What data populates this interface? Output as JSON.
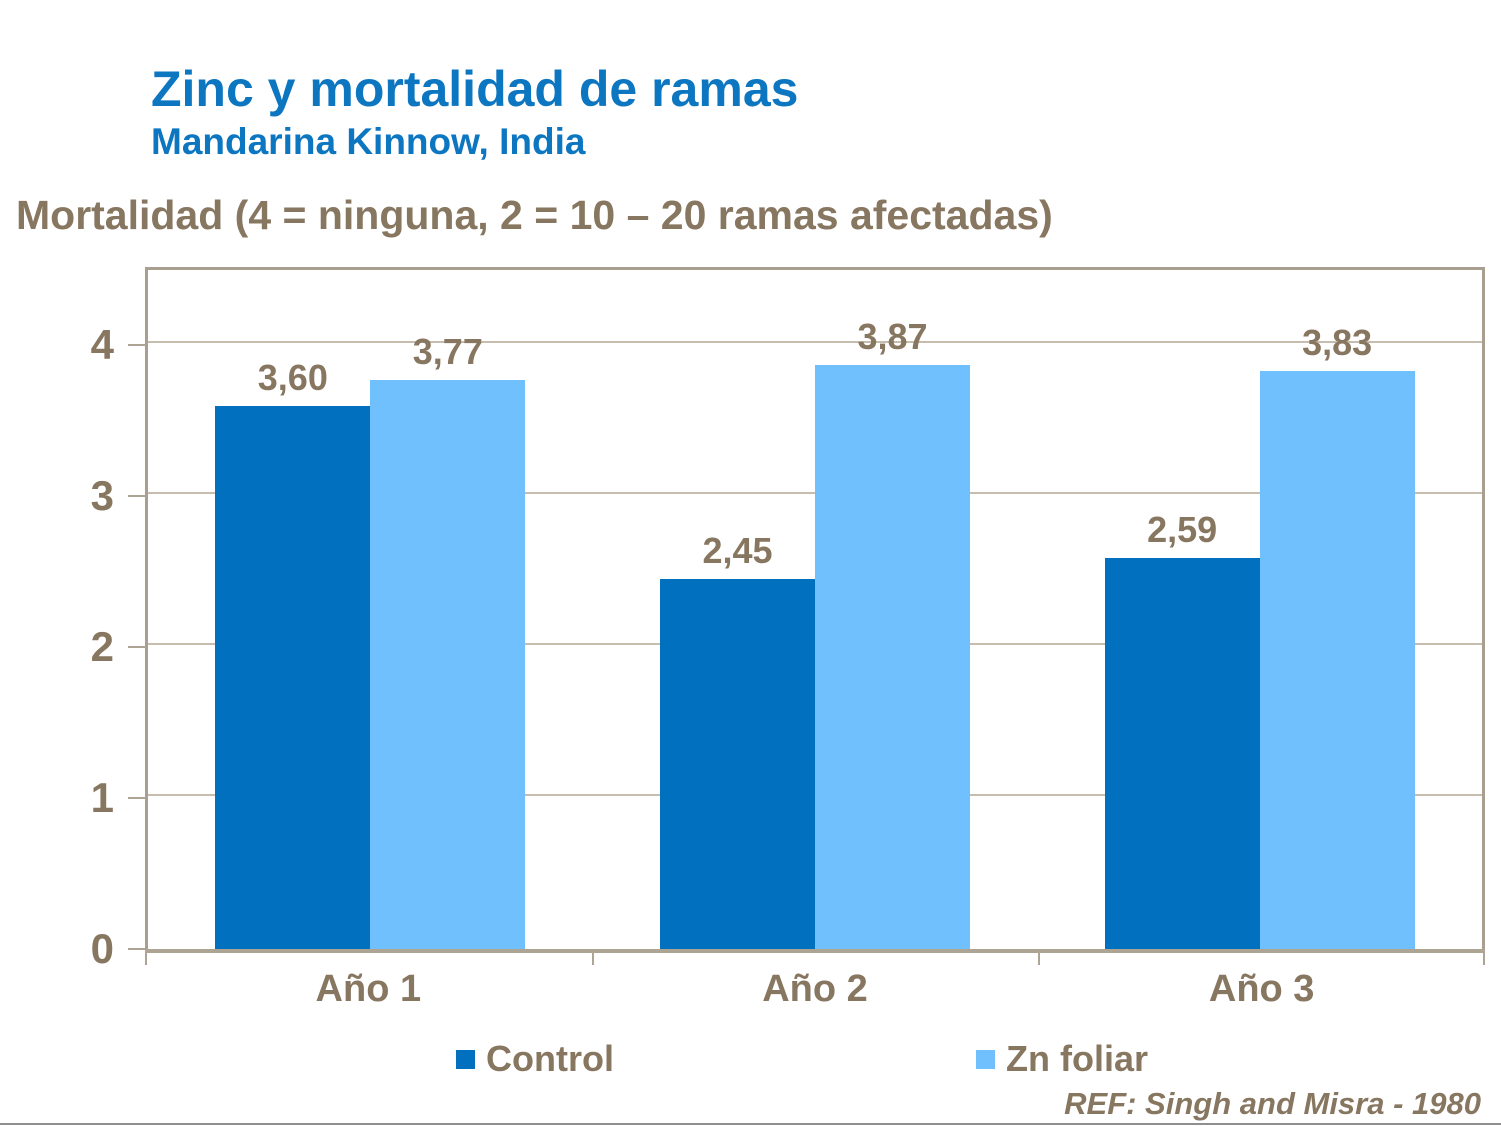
{
  "slide": {
    "title": "Zinc y mortalidad de ramas",
    "subtitle": "Mandarina Kinnow, India",
    "axis_caption": "Mortalidad (4 = ninguna, 2 = 10 – 20 ramas afectadas)",
    "reference": "REF: Singh and Misra - 1980"
  },
  "theme": {
    "title_blue": "#0D76C1",
    "text_brown": "#877660",
    "control_blue": "#0070BF",
    "zn_foliar_blue": "#6FC0FC",
    "grid_color": "#C6BDAF",
    "plot_border_color": "#A99F90",
    "axis_color": "#AEA494",
    "bottom_rule_gray": "#8F8F8F"
  },
  "chart_data": {
    "type": "bar",
    "title": "Zinc y mortalidad de ramas",
    "subtitle": "Mandarina Kinnow, India",
    "ylabel": "Mortalidad (4 = ninguna, 2 = 10 – 20 ramas afectadas)",
    "xlabel": "",
    "categories": [
      "Año 1",
      "Año 2",
      "Año 3"
    ],
    "series": [
      {
        "name": "Control",
        "color": "#0070BF",
        "values": [
          3.6,
          2.45,
          2.59
        ],
        "value_labels": [
          "3,60",
          "2,45",
          "2,59"
        ]
      },
      {
        "name": "Zn foliar",
        "color": "#6FC0FC",
        "values": [
          3.77,
          3.87,
          3.83
        ],
        "value_labels": [
          "3,77",
          "3,87",
          "3,83"
        ]
      }
    ],
    "ylim": [
      0,
      4.5
    ],
    "yticks": [
      0,
      1,
      2,
      3,
      4
    ],
    "grid": true,
    "legend_position": "bottom",
    "reference": "REF: Singh and Misra - 1980"
  }
}
